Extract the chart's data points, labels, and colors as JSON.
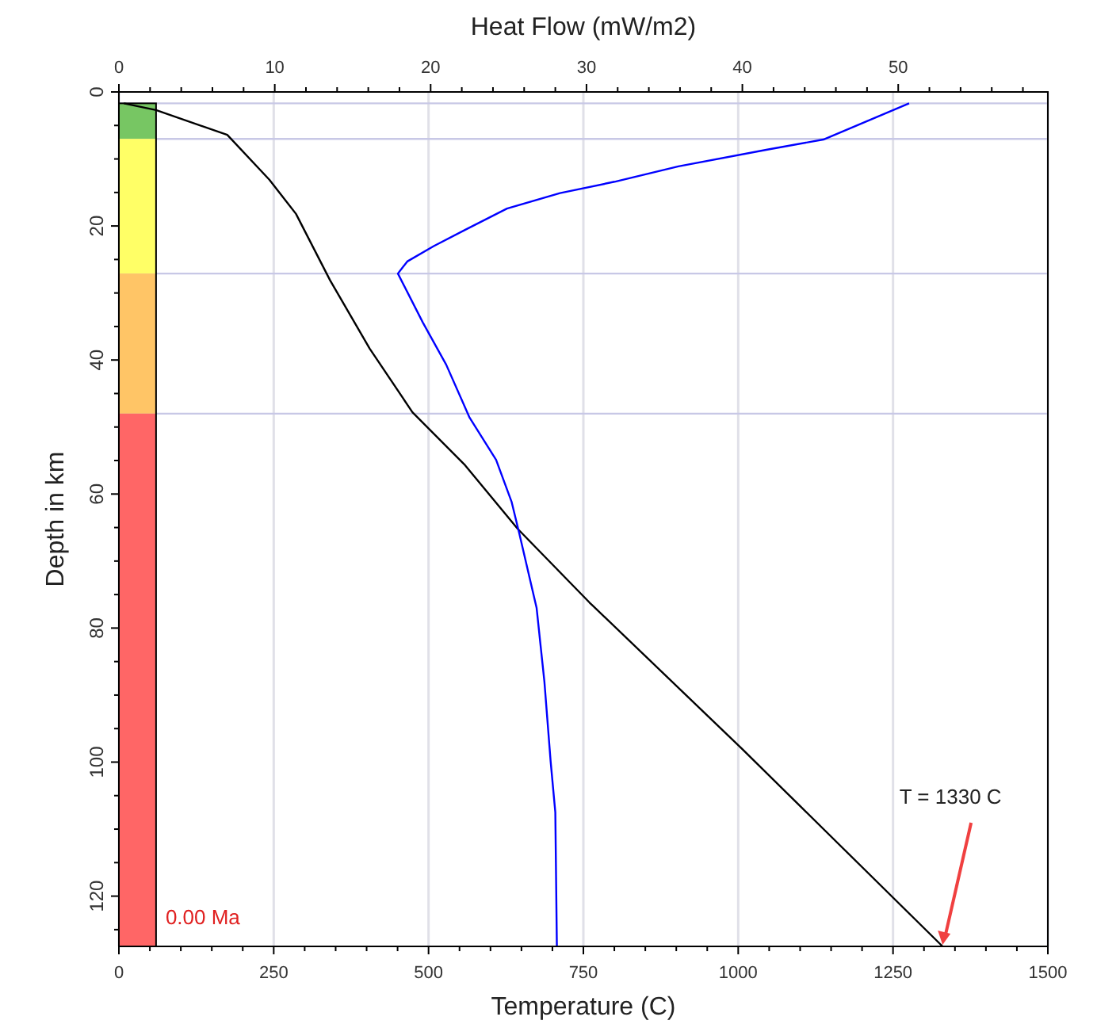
{
  "chart_data": {
    "type": "line",
    "xlabel": "Temperature (C)",
    "ylabel": "Depth in km",
    "x2label": "Heat Flow (mW/m2)",
    "xlim": [
      0,
      1500
    ],
    "xticks": [
      0,
      {
        "value": 50,
        "label": null
      },
      {
        "value": 100,
        "label": null
      },
      {
        "value": 150,
        "label": null
      },
      {
        "value": 200,
        "label": null
      },
      250,
      {
        "value": 300,
        "label": null
      },
      {
        "value": 350,
        "label": null
      },
      {
        "value": 400,
        "label": null
      },
      {
        "value": 450,
        "label": null
      },
      500,
      {
        "value": 550,
        "label": null
      },
      {
        "value": 600,
        "label": null
      },
      {
        "value": 650,
        "label": null
      },
      {
        "value": 700,
        "label": null
      },
      750,
      {
        "value": 800,
        "label": null
      },
      {
        "value": 850,
        "label": null
      },
      {
        "value": 900,
        "label": null
      },
      {
        "value": 950,
        "label": null
      },
      1000,
      {
        "value": 1050,
        "label": null
      },
      {
        "value": 1100,
        "label": null
      },
      {
        "value": 1150,
        "label": null
      },
      {
        "value": 1200,
        "label": null
      },
      1250,
      {
        "value": 1300,
        "label": null
      },
      {
        "value": 1350,
        "label": null
      },
      {
        "value": 1400,
        "label": null
      },
      {
        "value": 1450,
        "label": null
      },
      1500
    ],
    "x2lim": [
      0,
      59.6
    ],
    "x2ticks": [
      0,
      {
        "value": 2,
        "label": null
      },
      {
        "value": 4,
        "label": null
      },
      {
        "value": 6,
        "label": null
      },
      {
        "value": 8,
        "label": null
      },
      10,
      {
        "value": 12,
        "label": null
      },
      {
        "value": 14,
        "label": null
      },
      {
        "value": 16,
        "label": null
      },
      {
        "value": 18,
        "label": null
      },
      20,
      {
        "value": 22,
        "label": null
      },
      {
        "value": 24,
        "label": null
      },
      {
        "value": 26,
        "label": null
      },
      {
        "value": 28,
        "label": null
      },
      30,
      {
        "value": 32,
        "label": null
      },
      {
        "value": 34,
        "label": null
      },
      {
        "value": 36,
        "label": null
      },
      {
        "value": 38,
        "label": null
      },
      40,
      {
        "value": 42,
        "label": null
      },
      {
        "value": 44,
        "label": null
      },
      {
        "value": 46,
        "label": null
      },
      {
        "value": 48,
        "label": null
      },
      50,
      {
        "value": 52,
        "label": null
      },
      {
        "value": 54,
        "label": null
      },
      {
        "value": 56,
        "label": null
      },
      {
        "value": 58,
        "label": null
      }
    ],
    "ylim": [
      127.5,
      0
    ],
    "yticks": [
      0,
      {
        "value": 5,
        "label": null
      },
      {
        "value": 10,
        "label": null
      },
      {
        "value": 15,
        "label": null
      },
      20,
      {
        "value": 25,
        "label": null
      },
      {
        "value": 30,
        "label": null
      },
      {
        "value": 35,
        "label": null
      },
      40,
      {
        "value": 45,
        "label": null
      },
      {
        "value": 50,
        "label": null
      },
      {
        "value": 55,
        "label": null
      },
      60,
      {
        "value": 65,
        "label": null
      },
      {
        "value": 70,
        "label": null
      },
      {
        "value": 75,
        "label": null
      },
      80,
      {
        "value": 85,
        "label": null
      },
      {
        "value": 90,
        "label": null
      },
      {
        "value": 95,
        "label": null
      },
      100,
      {
        "value": 105,
        "label": null
      },
      {
        "value": 110,
        "label": null
      },
      {
        "value": 115,
        "label": null
      },
      120,
      {
        "value": 125,
        "label": null
      }
    ],
    "grid": "x",
    "marker": "none",
    "line_style": "solid",
    "series": [
      {
        "color": "#000000",
        "x": [
          8,
          60,
          175,
          243,
          286,
          341,
          405,
          474,
          559,
          644,
          760,
          1006,
          1330
        ],
        "values": [
          1.7,
          2.7,
          6.4,
          13.1,
          18.2,
          28.1,
          38.3,
          47.8,
          55.7,
          65.2,
          76.2,
          98,
          127.5
        ]
      },
      {
        "color": "#0000ff",
        "axis": "x2",
        "x": [
          50.7,
          45.2,
          41.6,
          35.9,
          31.8,
          28.3,
          24.9,
          22.2,
          20.2,
          18.5,
          17.9,
          19.5,
          21.0,
          22.5,
          24.2,
          25.2,
          25.7,
          26.8,
          27.3,
          27.7,
          28.0,
          28.1
        ],
        "values": [
          1.7,
          7.1,
          8.6,
          11.1,
          13.4,
          15.1,
          17.4,
          20.6,
          23,
          25.3,
          27.1,
          34.4,
          40.7,
          48.6,
          54.9,
          61.2,
          66,
          77,
          88,
          99.9,
          107.5,
          127.5
        ]
      }
    ],
    "ref_lines": [
      {
        "axis": "y",
        "value": 1.7,
        "color": "#c8c8e6"
      },
      {
        "axis": "y",
        "value": 7,
        "color": "#c8c8e6"
      },
      {
        "axis": "y",
        "value": 27.1,
        "color": "#c8c8e6"
      },
      {
        "axis": "y",
        "value": 48,
        "color": "#c8c8e6"
      }
    ],
    "annotations": [
      {
        "text": "T = 1330 C",
        "x": 1330,
        "y": 127.5
      },
      "0.00 Ma"
    ]
  }
}
